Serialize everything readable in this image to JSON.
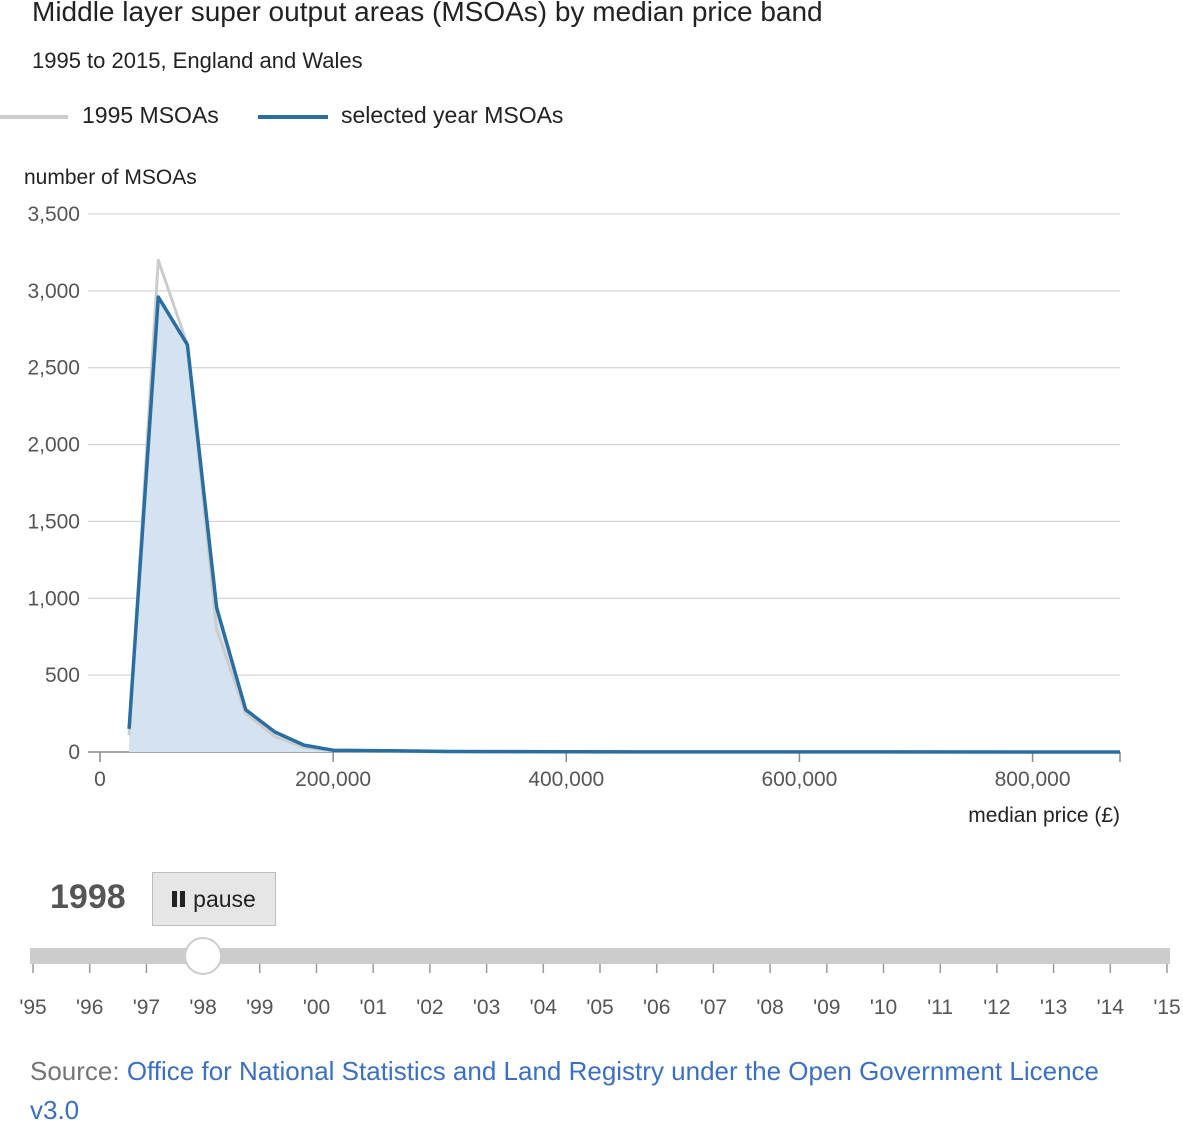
{
  "header": {
    "title": "Middle layer super output areas (MSOAs) by median price band",
    "subtitle": "1995 to 2015, England and Wales"
  },
  "legend": {
    "items": [
      {
        "label": "1995 MSOAs",
        "color": "#cccccc"
      },
      {
        "label": "selected year MSOAs",
        "color": "#2a6ea1"
      }
    ]
  },
  "chart_data": {
    "type": "area",
    "title": "Middle layer super output areas (MSOAs) by median price band",
    "subtitle": "1995 to 2015, England and Wales",
    "ylabel": "number of MSOAs",
    "xlabel": "median price (£)",
    "ylim": [
      0,
      3500
    ],
    "xlim": [
      0,
      875000
    ],
    "y_ticks": [
      0,
      500,
      1000,
      1500,
      2000,
      2500,
      3000,
      3500
    ],
    "y_tick_labels": [
      "0",
      "500",
      "1,000",
      "1,500",
      "2,000",
      "2,500",
      "3,000",
      "3,500"
    ],
    "x_ticks": [
      0,
      200000,
      400000,
      600000,
      800000
    ],
    "x_tick_labels": [
      "0",
      "200,000",
      "400,000",
      "600,000",
      "800,000"
    ],
    "grid": true,
    "legend_position": "top-left",
    "series": [
      {
        "name": "1995 MSOAs",
        "color": "#cccccc",
        "x": [
          25000,
          50000,
          75000,
          100000,
          125000,
          150000,
          175000,
          200000,
          250000,
          300000,
          400000,
          875000
        ],
        "y": [
          110,
          3200,
          2650,
          800,
          250,
          100,
          30,
          10,
          5,
          2,
          0,
          0
        ]
      },
      {
        "name": "selected year MSOAs",
        "color": "#2a6ea1",
        "fill": "#d4e3ef",
        "x": [
          25000,
          50000,
          75000,
          100000,
          125000,
          150000,
          175000,
          200000,
          250000,
          300000,
          400000,
          875000
        ],
        "y": [
          150,
          2960,
          2650,
          940,
          275,
          130,
          45,
          12,
          8,
          3,
          1,
          0
        ]
      }
    ]
  },
  "controls": {
    "year": "1998",
    "pause_label": "pause",
    "slider": {
      "labels": [
        "'95",
        "'96",
        "'97",
        "'98",
        "'99",
        "'00",
        "'01",
        "'02",
        "'03",
        "'04",
        "'05",
        "'06",
        "'07",
        "'08",
        "'09",
        "'10",
        "'11",
        "'12",
        "'13",
        "'14",
        "'15"
      ],
      "selected_index": 3
    }
  },
  "source": {
    "prefix": "Source: ",
    "link_text": "Office for National Statistics and Land Registry under the Open Government Licence v3.0"
  }
}
